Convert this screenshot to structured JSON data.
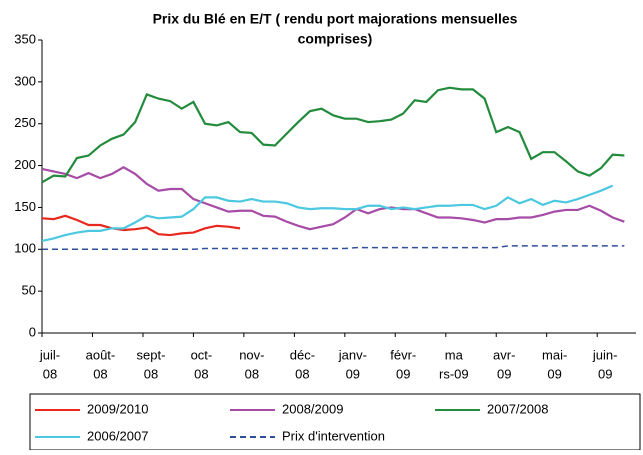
{
  "chart_data": {
    "type": "line",
    "title": [
      "Prix du Blé en E/T ( rendu port majorations mensuelles",
      "comprises)"
    ],
    "x": [
      0,
      1,
      2,
      3,
      4,
      5,
      6,
      7,
      8,
      9,
      10,
      11,
      12,
      13,
      14,
      15,
      16,
      17,
      18,
      19,
      20,
      21,
      22,
      23,
      24,
      25,
      26,
      27,
      28,
      29,
      30,
      31,
      32,
      33,
      34,
      35,
      36,
      37,
      38,
      39,
      40,
      41,
      42,
      43,
      44,
      45,
      46,
      47,
      48,
      49,
      50
    ],
    "xlim": [
      0,
      51
    ],
    "xticks": [
      {
        "value": 0,
        "label": [
          "juil-",
          "08"
        ]
      },
      {
        "value": 4.33,
        "label": [
          "août-",
          "08"
        ]
      },
      {
        "value": 8.67,
        "label": [
          "sept-",
          "08"
        ]
      },
      {
        "value": 13,
        "label": [
          "oct-",
          "08"
        ]
      },
      {
        "value": 17.33,
        "label": [
          "nov-",
          "08"
        ]
      },
      {
        "value": 21.67,
        "label": [
          "déc-",
          "08"
        ]
      },
      {
        "value": 26,
        "label": [
          "janv-",
          "09"
        ]
      },
      {
        "value": 30.33,
        "label": [
          "févr-",
          "09"
        ]
      },
      {
        "value": 34.67,
        "label": [
          "ma",
          "rs-09"
        ]
      },
      {
        "value": 39,
        "label": [
          "avr-",
          "09"
        ]
      },
      {
        "value": 43.33,
        "label": [
          "mai-",
          "09"
        ]
      },
      {
        "value": 47.67,
        "label": [
          "juin-",
          "09"
        ]
      }
    ],
    "ylim": [
      0,
      350
    ],
    "yticks": [
      0,
      50,
      100,
      150,
      200,
      250,
      300,
      350
    ],
    "legend": "bottom",
    "series": [
      {
        "name": "2009/2010",
        "color": "#e8281e",
        "dash": false,
        "values": [
          137,
          136,
          140,
          135,
          129,
          129,
          125,
          123,
          124,
          126,
          118,
          117,
          119,
          120,
          125,
          128,
          127,
          125,
          null,
          null,
          null,
          null,
          null,
          null,
          null,
          null,
          null,
          null,
          null,
          null,
          null,
          null,
          null,
          null,
          null,
          null,
          null,
          null,
          null,
          null,
          null,
          null,
          null,
          null,
          null,
          null,
          null,
          null,
          null,
          null,
          null
        ]
      },
      {
        "name": "2008/2009",
        "color": "#a64ca6",
        "dash": false,
        "values": [
          196,
          193,
          190,
          185,
          191,
          185,
          190,
          198,
          190,
          178,
          170,
          172,
          172,
          160,
          155,
          150,
          145,
          146,
          146,
          140,
          139,
          133,
          128,
          124,
          127,
          130,
          138,
          148,
          143,
          148,
          150,
          148,
          148,
          143,
          138,
          138,
          137,
          135,
          132,
          136,
          136,
          138,
          138,
          141,
          145,
          147,
          147,
          152,
          146,
          138,
          133
        ]
      },
      {
        "name": "2007/2008",
        "color": "#238b3c",
        "dash": false,
        "values": [
          180,
          188,
          187,
          209,
          212,
          224,
          232,
          237,
          252,
          285,
          280,
          277,
          268,
          276,
          250,
          248,
          252,
          240,
          239,
          225,
          224,
          238,
          252,
          265,
          268,
          260,
          256,
          256,
          252,
          253,
          255,
          262,
          278,
          276,
          290,
          293,
          291,
          291,
          280,
          240,
          246,
          240,
          208,
          216,
          216,
          205,
          193,
          188,
          197,
          213,
          212
        ]
      },
      {
        "name": "2006/2007",
        "color": "#4cc8e0",
        "dash": false,
        "values": [
          110,
          113,
          117,
          120,
          122,
          122,
          125,
          125,
          132,
          140,
          137,
          138,
          139,
          148,
          162,
          162,
          158,
          157,
          160,
          157,
          157,
          155,
          150,
          148,
          149,
          149,
          148,
          148,
          152,
          152,
          148,
          150,
          148,
          150,
          152,
          152,
          153,
          153,
          148,
          152,
          162,
          155,
          160,
          153,
          158,
          156,
          160,
          165,
          170,
          176,
          null
        ]
      },
      {
        "name": "Prix d'intervention",
        "color": "#2f4f9a",
        "dash": true,
        "values": [
          100,
          100,
          100,
          100,
          100,
          100,
          100,
          100,
          100,
          100,
          100,
          100,
          100,
          100,
          101,
          101,
          101,
          101,
          101,
          101,
          101,
          101,
          101,
          101,
          101,
          101,
          101,
          102,
          102,
          102,
          102,
          102,
          102,
          102,
          102,
          102,
          102,
          102,
          102,
          102,
          104,
          104,
          104,
          104,
          104,
          104,
          104,
          104,
          104,
          104,
          104
        ]
      }
    ]
  }
}
